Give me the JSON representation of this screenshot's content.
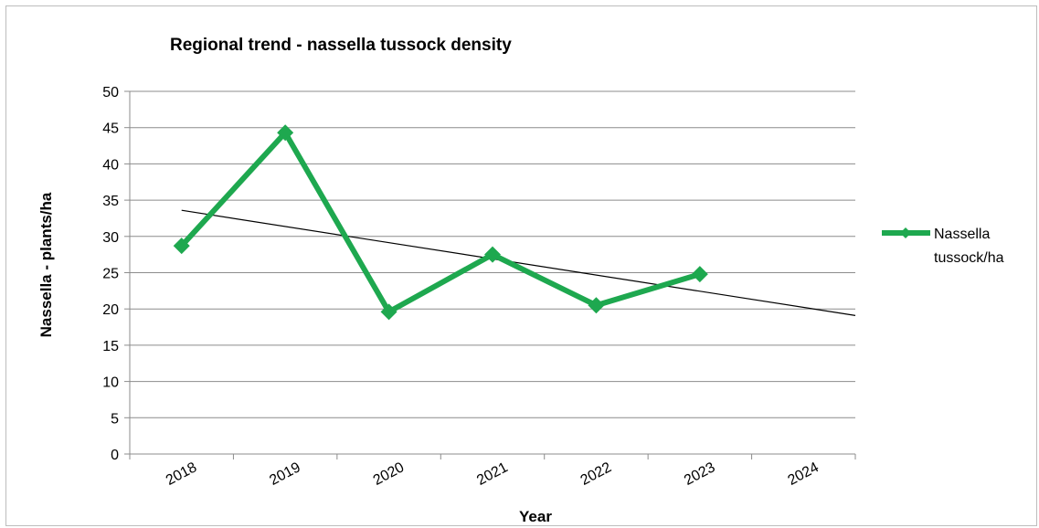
{
  "chart_data": {
    "type": "line",
    "title": "Regional trend - nassella tussock density",
    "xlabel": "Year",
    "ylabel": "Nassella - plants/ha",
    "categories": [
      "2018",
      "2019",
      "2020",
      "2021",
      "2022",
      "2023",
      "2024"
    ],
    "yticks": [
      "0",
      "5",
      "10",
      "15",
      "20",
      "25",
      "30",
      "35",
      "40",
      "45",
      "50"
    ],
    "ylim": [
      0,
      50
    ],
    "grid": true,
    "legend_position": "right",
    "series": [
      {
        "name": "Nassella tussock/ha",
        "x": [
          2018,
          2019,
          2020,
          2021,
          2022,
          2023
        ],
        "values": [
          28.7,
          44.3,
          19.6,
          27.5,
          20.5,
          24.8
        ],
        "color": "#1ea84f"
      }
    ],
    "trendline": {
      "x_start": 2018,
      "y_start": 33.6,
      "x_end": 2024.5,
      "y_end": 19.1,
      "color": "#000000"
    }
  }
}
